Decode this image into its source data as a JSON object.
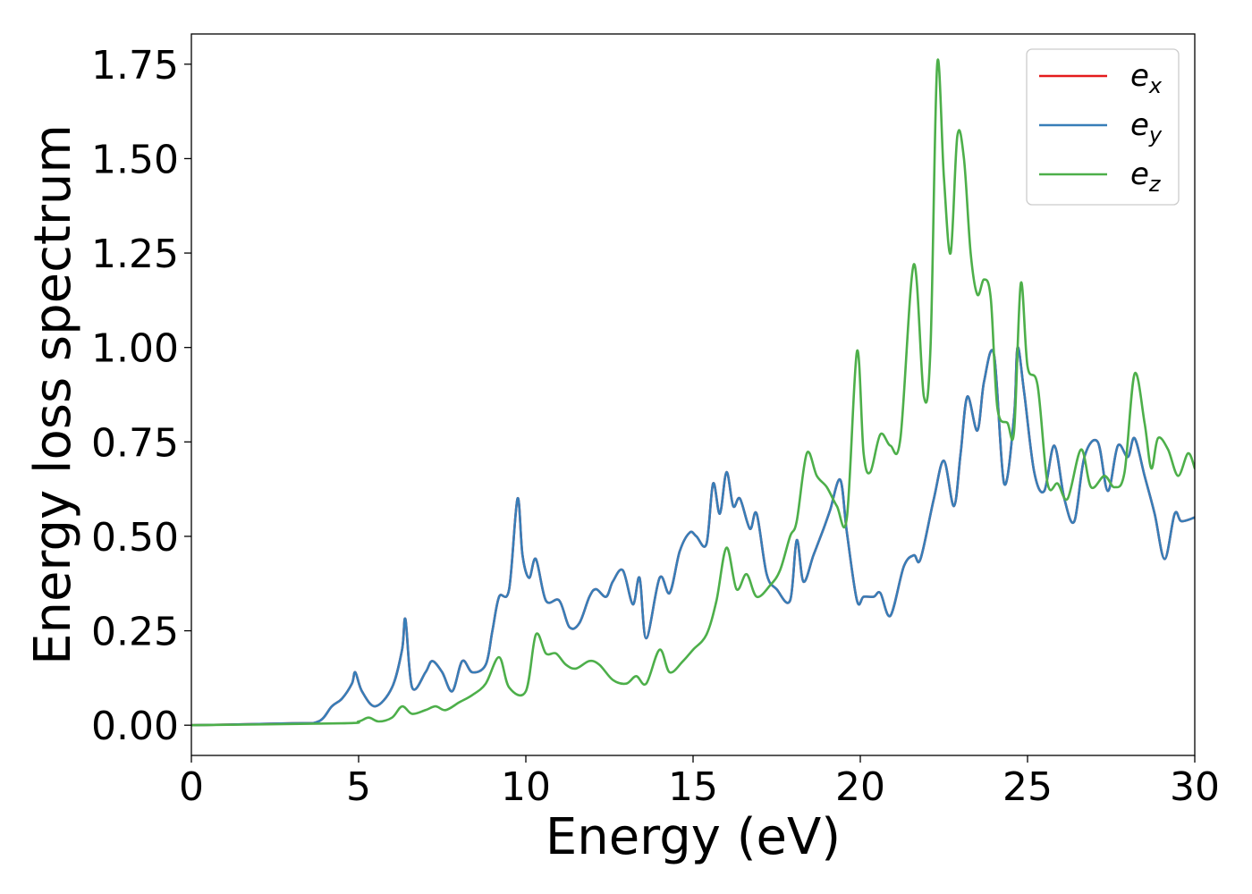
{
  "chart_data": {
    "type": "line",
    "xlabel": "Energy (eV)",
    "ylabel": "Energy loss spectrum",
    "xlim": [
      0,
      30
    ],
    "ylim": [
      -0.08,
      1.83
    ],
    "xticks": [
      "0",
      "5",
      "10",
      "15",
      "20",
      "25",
      "30"
    ],
    "yticks": [
      "0.00",
      "0.25",
      "0.50",
      "0.75",
      "1.00",
      "1.25",
      "1.50",
      "1.75"
    ],
    "grid": false,
    "legend_position": "top-right",
    "series": [
      {
        "name": "e_x",
        "color": "#e41a1c",
        "x": [
          0,
          3,
          3.8,
          4.2,
          4.5,
          4.8,
          4.9,
          5.1,
          5.5,
          6.0,
          6.3,
          6.4,
          6.6,
          7.0,
          7.2,
          7.5,
          7.8,
          8.1,
          8.4,
          8.8,
          9.0,
          9.2,
          9.5,
          9.75,
          9.9,
          10.1,
          10.3,
          10.6,
          11.0,
          11.3,
          11.6,
          11.9,
          12.1,
          12.4,
          12.6,
          12.9,
          13.2,
          13.4,
          13.6,
          14.0,
          14.3,
          14.6,
          14.9,
          15.1,
          15.4,
          15.6,
          15.8,
          16.0,
          16.2,
          16.4,
          16.7,
          16.9,
          17.2,
          17.5,
          17.9,
          18.1,
          18.3,
          18.6,
          18.9,
          19.1,
          19.4,
          19.6,
          19.9,
          20.1,
          20.4,
          20.6,
          20.9,
          21.3,
          21.6,
          21.8,
          22.2,
          22.5,
          22.8,
          23.0,
          23.2,
          23.5,
          23.7,
          24.0,
          24.3,
          24.6,
          24.7,
          24.9,
          25.2,
          25.5,
          25.8,
          26.1,
          26.4,
          26.7,
          27.1,
          27.4,
          27.7,
          28.0,
          28.2,
          28.5,
          28.8,
          29.1,
          29.4,
          29.6,
          30.0
        ],
        "values": [
          0.0,
          0.005,
          0.01,
          0.05,
          0.07,
          0.11,
          0.14,
          0.09,
          0.05,
          0.1,
          0.2,
          0.28,
          0.1,
          0.14,
          0.17,
          0.14,
          0.09,
          0.17,
          0.14,
          0.16,
          0.25,
          0.34,
          0.36,
          0.6,
          0.45,
          0.39,
          0.44,
          0.33,
          0.33,
          0.26,
          0.27,
          0.34,
          0.36,
          0.34,
          0.38,
          0.41,
          0.32,
          0.39,
          0.23,
          0.39,
          0.35,
          0.46,
          0.51,
          0.5,
          0.48,
          0.64,
          0.56,
          0.67,
          0.58,
          0.6,
          0.52,
          0.56,
          0.4,
          0.36,
          0.33,
          0.49,
          0.38,
          0.45,
          0.52,
          0.57,
          0.65,
          0.51,
          0.33,
          0.34,
          0.34,
          0.35,
          0.29,
          0.42,
          0.45,
          0.44,
          0.6,
          0.7,
          0.58,
          0.72,
          0.87,
          0.78,
          0.91,
          0.98,
          0.64,
          0.82,
          1.0,
          0.88,
          0.67,
          0.62,
          0.74,
          0.6,
          0.54,
          0.71,
          0.75,
          0.62,
          0.74,
          0.71,
          0.76,
          0.66,
          0.56,
          0.44,
          0.56,
          0.54,
          0.55
        ]
      },
      {
        "name": "e_y",
        "color": "#377eb8",
        "x": [
          0,
          3,
          3.8,
          4.2,
          4.5,
          4.8,
          4.9,
          5.1,
          5.5,
          6.0,
          6.3,
          6.4,
          6.6,
          7.0,
          7.2,
          7.5,
          7.8,
          8.1,
          8.4,
          8.8,
          9.0,
          9.2,
          9.5,
          9.75,
          9.9,
          10.1,
          10.3,
          10.6,
          11.0,
          11.3,
          11.6,
          11.9,
          12.1,
          12.4,
          12.6,
          12.9,
          13.2,
          13.4,
          13.6,
          14.0,
          14.3,
          14.6,
          14.9,
          15.1,
          15.4,
          15.6,
          15.8,
          16.0,
          16.2,
          16.4,
          16.7,
          16.9,
          17.2,
          17.5,
          17.9,
          18.1,
          18.3,
          18.6,
          18.9,
          19.1,
          19.4,
          19.6,
          19.9,
          20.1,
          20.4,
          20.6,
          20.9,
          21.3,
          21.6,
          21.8,
          22.2,
          22.5,
          22.8,
          23.0,
          23.2,
          23.5,
          23.7,
          24.0,
          24.3,
          24.6,
          24.7,
          24.9,
          25.2,
          25.5,
          25.8,
          26.1,
          26.4,
          26.7,
          27.1,
          27.4,
          27.7,
          28.0,
          28.2,
          28.5,
          28.8,
          29.1,
          29.4,
          29.6,
          30.0
        ],
        "values": [
          0.0,
          0.005,
          0.01,
          0.05,
          0.07,
          0.11,
          0.14,
          0.09,
          0.05,
          0.1,
          0.2,
          0.28,
          0.1,
          0.14,
          0.17,
          0.14,
          0.09,
          0.17,
          0.14,
          0.16,
          0.25,
          0.34,
          0.36,
          0.6,
          0.45,
          0.39,
          0.44,
          0.33,
          0.33,
          0.26,
          0.27,
          0.34,
          0.36,
          0.34,
          0.38,
          0.41,
          0.32,
          0.39,
          0.23,
          0.39,
          0.35,
          0.46,
          0.51,
          0.5,
          0.48,
          0.64,
          0.56,
          0.67,
          0.58,
          0.6,
          0.52,
          0.56,
          0.4,
          0.36,
          0.33,
          0.49,
          0.38,
          0.45,
          0.52,
          0.57,
          0.65,
          0.51,
          0.33,
          0.34,
          0.34,
          0.35,
          0.29,
          0.42,
          0.45,
          0.44,
          0.6,
          0.7,
          0.58,
          0.72,
          0.87,
          0.78,
          0.91,
          0.98,
          0.64,
          0.82,
          1.0,
          0.88,
          0.67,
          0.62,
          0.74,
          0.6,
          0.54,
          0.71,
          0.75,
          0.62,
          0.74,
          0.71,
          0.76,
          0.66,
          0.56,
          0.44,
          0.56,
          0.54,
          0.55
        ]
      },
      {
        "name": "e_z",
        "color": "#4daf4a",
        "x": [
          0,
          4.5,
          5.0,
          5.3,
          5.6,
          6.0,
          6.3,
          6.6,
          7.0,
          7.3,
          7.6,
          8.0,
          8.4,
          8.8,
          9.2,
          9.5,
          10.0,
          10.3,
          10.6,
          10.9,
          11.2,
          11.5,
          11.9,
          12.2,
          12.6,
          13.0,
          13.3,
          13.6,
          14.0,
          14.3,
          14.7,
          15.0,
          15.4,
          15.7,
          16.0,
          16.3,
          16.6,
          16.9,
          17.3,
          17.6,
          17.9,
          18.1,
          18.4,
          18.7,
          19.0,
          19.3,
          19.6,
          19.9,
          20.1,
          20.3,
          20.6,
          20.9,
          21.2,
          21.6,
          21.9,
          22.1,
          22.3,
          22.5,
          22.7,
          22.9,
          23.1,
          23.3,
          23.5,
          23.7,
          23.9,
          24.1,
          24.4,
          24.6,
          24.8,
          25.0,
          25.3,
          25.6,
          25.9,
          26.2,
          26.6,
          26.9,
          27.3,
          27.6,
          27.9,
          28.2,
          28.5,
          28.7,
          28.9,
          29.2,
          29.5,
          29.8,
          30.0
        ],
        "values": [
          0.0,
          0.005,
          0.01,
          0.02,
          0.01,
          0.02,
          0.05,
          0.03,
          0.04,
          0.05,
          0.04,
          0.06,
          0.08,
          0.11,
          0.18,
          0.1,
          0.09,
          0.24,
          0.19,
          0.19,
          0.16,
          0.15,
          0.17,
          0.16,
          0.12,
          0.11,
          0.13,
          0.11,
          0.2,
          0.14,
          0.17,
          0.2,
          0.24,
          0.33,
          0.47,
          0.36,
          0.4,
          0.34,
          0.37,
          0.41,
          0.5,
          0.54,
          0.72,
          0.66,
          0.63,
          0.58,
          0.55,
          0.99,
          0.72,
          0.67,
          0.77,
          0.74,
          0.76,
          1.22,
          0.87,
          1.0,
          1.75,
          1.45,
          1.25,
          1.56,
          1.5,
          1.25,
          1.14,
          1.18,
          1.13,
          0.84,
          0.8,
          0.78,
          1.17,
          0.95,
          0.9,
          0.64,
          0.64,
          0.6,
          0.73,
          0.63,
          0.66,
          0.63,
          0.67,
          0.93,
          0.8,
          0.68,
          0.76,
          0.73,
          0.66,
          0.72,
          0.68
        ]
      }
    ]
  }
}
